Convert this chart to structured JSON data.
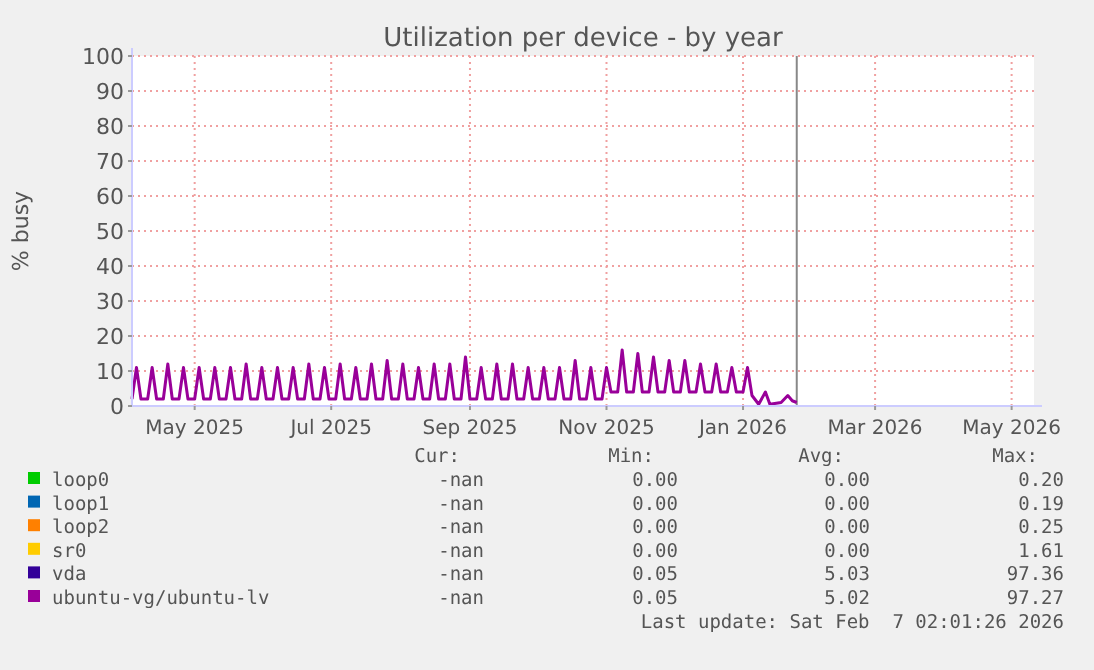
{
  "chart_data": {
    "type": "line",
    "title": "Utilization per device - by year",
    "ylabel": "% busy",
    "xlim": [
      "2025-04-03",
      "2026-05-11"
    ],
    "xticks": [
      {
        "value": "2025-05-01",
        "label": "May 2025"
      },
      {
        "value": "2025-07-01",
        "label": "Jul 2025"
      },
      {
        "value": "2025-09-01",
        "label": "Sep 2025"
      },
      {
        "value": "2025-11-01",
        "label": "Nov 2025"
      },
      {
        "value": "2026-01-01",
        "label": "Jan 2026"
      },
      {
        "value": "2026-03-01",
        "label": "Mar 2026"
      },
      {
        "value": "2026-05-01",
        "label": "May 2026"
      }
    ],
    "ylim": [
      0,
      100
    ],
    "yticks": [
      0,
      10,
      20,
      30,
      40,
      50,
      60,
      70,
      80,
      90,
      100
    ],
    "grid": true,
    "legend": "bottom",
    "marker": "none",
    "line_style": "solid",
    "ref_lines": [
      {
        "axis": "x",
        "value": "2026-01-25",
        "color": "#888888"
      }
    ],
    "annotations": [
      "Cur:",
      "Min:",
      "Avg:",
      "Max:",
      "-nan",
      "0.00",
      "0.00",
      "0.20",
      "-nan",
      "0.00",
      "0.00",
      "0.19",
      "-nan",
      "0.00",
      "0.00",
      "0.25",
      "-nan",
      "0.00",
      "0.00",
      "1.61",
      "-nan",
      "0.05",
      "5.03",
      "97.36",
      "-nan",
      "0.05",
      "5.02",
      "97.27",
      "Last update: Sat Feb  7 02:01:26 2026"
    ],
    "series": [
      {
        "name": "loop0",
        "color": "#00cc00"
      },
      {
        "name": "loop1",
        "color": "#0066b3"
      },
      {
        "name": "loop2",
        "color": "#ff8000"
      },
      {
        "name": "sr0",
        "color": "#ffcc00"
      },
      {
        "name": "vda",
        "color": "#330099"
      },
      {
        "name": "ubuntu-vg/ubuntu-lv",
        "color": "#990099",
        "x": [
          "2025-04-03",
          "2025-04-05",
          "2025-04-07",
          "2025-04-10",
          "2025-04-12",
          "2025-04-14",
          "2025-04-17",
          "2025-04-19",
          "2025-04-21",
          "2025-04-24",
          "2025-04-26",
          "2025-04-28",
          "2025-05-01",
          "2025-05-03",
          "2025-05-05",
          "2025-05-08",
          "2025-05-10",
          "2025-05-12",
          "2025-05-15",
          "2025-05-17",
          "2025-05-19",
          "2025-05-22",
          "2025-05-24",
          "2025-05-26",
          "2025-05-29",
          "2025-05-31",
          "2025-06-02",
          "2025-06-05",
          "2025-06-07",
          "2025-06-09",
          "2025-06-12",
          "2025-06-14",
          "2025-06-16",
          "2025-06-19",
          "2025-06-21",
          "2025-06-23",
          "2025-06-26",
          "2025-06-28",
          "2025-06-30",
          "2025-07-03",
          "2025-07-05",
          "2025-07-07",
          "2025-07-10",
          "2025-07-12",
          "2025-07-14",
          "2025-07-17",
          "2025-07-19",
          "2025-07-21",
          "2025-07-24",
          "2025-07-26",
          "2025-07-28",
          "2025-07-31",
          "2025-08-02",
          "2025-08-04",
          "2025-08-07",
          "2025-08-09",
          "2025-08-11",
          "2025-08-14",
          "2025-08-16",
          "2025-08-18",
          "2025-08-21",
          "2025-08-23",
          "2025-08-25",
          "2025-08-28",
          "2025-08-30",
          "2025-09-01",
          "2025-09-04",
          "2025-09-06",
          "2025-09-08",
          "2025-09-11",
          "2025-09-13",
          "2025-09-15",
          "2025-09-18",
          "2025-09-20",
          "2025-09-22",
          "2025-09-25",
          "2025-09-27",
          "2025-09-29",
          "2025-10-02",
          "2025-10-04",
          "2025-10-06",
          "2025-10-09",
          "2025-10-11",
          "2025-10-13",
          "2025-10-16",
          "2025-10-18",
          "2025-10-20",
          "2025-10-23",
          "2025-10-25",
          "2025-10-27",
          "2025-10-30",
          "2025-11-01",
          "2025-11-03",
          "2025-11-06",
          "2025-11-08",
          "2025-11-10",
          "2025-11-13",
          "2025-11-15",
          "2025-11-17",
          "2025-11-20",
          "2025-11-22",
          "2025-11-24",
          "2025-11-27",
          "2025-11-29",
          "2025-12-01",
          "2025-12-04",
          "2025-12-06",
          "2025-12-08",
          "2025-12-11",
          "2025-12-13",
          "2025-12-15",
          "2025-12-18",
          "2025-12-20",
          "2025-12-22",
          "2025-12-25",
          "2025-12-27",
          "2025-12-29",
          "2026-01-01",
          "2026-01-03",
          "2026-01-05",
          "2026-01-08",
          "2026-01-11",
          "2026-01-13",
          "2026-01-18",
          "2026-01-21",
          "2026-01-23",
          "2026-01-25"
        ],
        "values": [
          2,
          11,
          2,
          2,
          11,
          2,
          2,
          12,
          2,
          2,
          11,
          2,
          2,
          11,
          2,
          2,
          11,
          2,
          2,
          11,
          2,
          2,
          12,
          2,
          2,
          11,
          2,
          2,
          11,
          2,
          2,
          11,
          2,
          2,
          12,
          2,
          2,
          11,
          2,
          2,
          12,
          2,
          2,
          11,
          2,
          2,
          12,
          2,
          2,
          13,
          2,
          2,
          12,
          2,
          2,
          11,
          2,
          2,
          12,
          2,
          2,
          12,
          2,
          2,
          14,
          2,
          2,
          11,
          2,
          2,
          12,
          2,
          2,
          12,
          2,
          2,
          11,
          2,
          2,
          11,
          2,
          2,
          11,
          2,
          2,
          13,
          2,
          2,
          11,
          2,
          2,
          11,
          4,
          4,
          16,
          4,
          4,
          15,
          4,
          4,
          14,
          4,
          4,
          13,
          4,
          4,
          13,
          4,
          4,
          12,
          4,
          4,
          12,
          4,
          4,
          11,
          4,
          4,
          11,
          3,
          0.5,
          4,
          0.5,
          1,
          3,
          1.5,
          1
        ]
      }
    ]
  }
}
